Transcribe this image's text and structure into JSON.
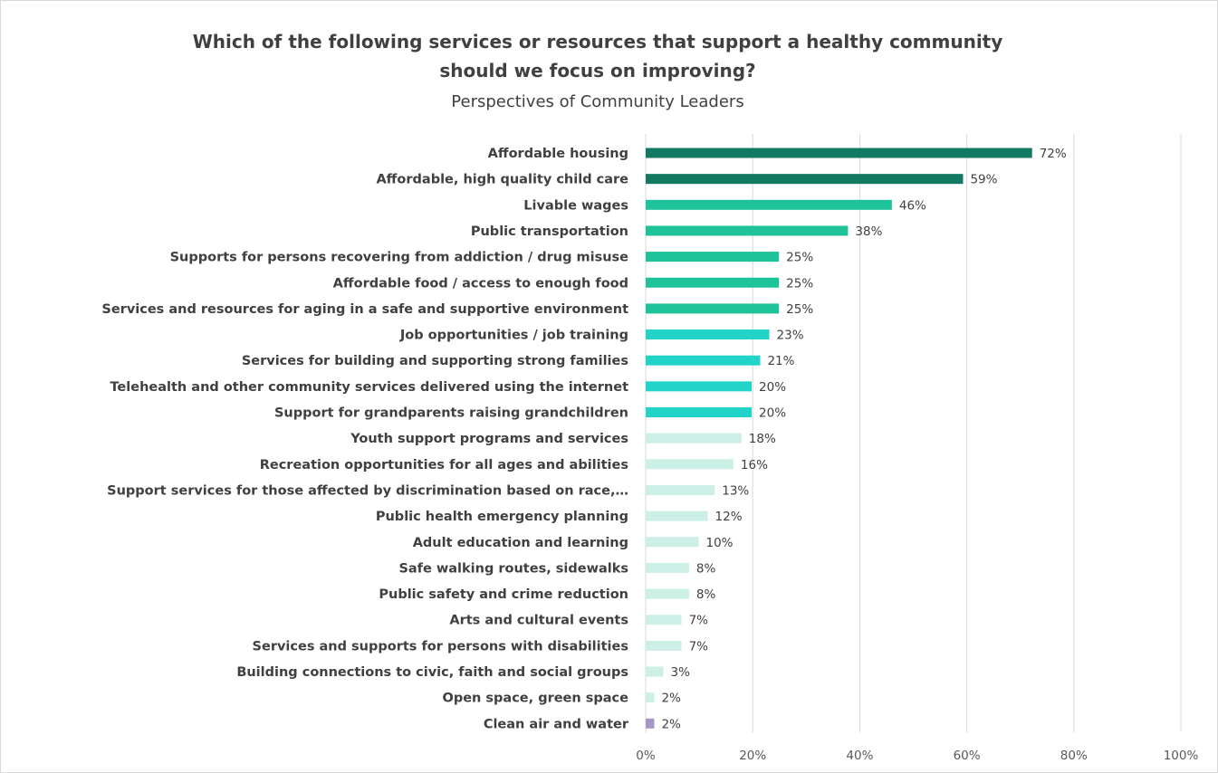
{
  "chart_data": {
    "type": "bar",
    "orientation": "horizontal",
    "title": "Which of the following services or resources that support a healthy community should we focus on improving?",
    "subtitle": "Perspectives of Community Leaders",
    "categories": [
      "Affordable housing",
      "Affordable, high quality child care",
      "Livable wages",
      "Public transportation",
      "Supports for persons recovering from addiction / drug misuse",
      "Affordable food / access to enough food",
      "Services and resources for aging in a safe and supportive environment",
      "Job opportunities / job training",
      "Services for building and supporting strong families",
      "Telehealth and other community services delivered using the internet",
      "Support for grandparents raising grandchildren",
      "Youth support programs and services",
      "Recreation opportunities for all ages and abilities",
      "Support services for those affected by discrimination based on race,…",
      "Public health emergency planning",
      "Adult education and learning",
      "Safe walking routes, sidewalks",
      "Public safety and crime reduction",
      "Arts and cultural events",
      "Services and supports for persons with disabilities",
      "Building connections to civic, faith and social groups",
      "Open space, green space",
      "Clean air and water"
    ],
    "values": [
      72.2,
      59.3,
      46,
      37.8,
      24.9,
      24.9,
      24.9,
      23.1,
      21.4,
      19.8,
      19.8,
      17.9,
      16.4,
      12.9,
      11.6,
      9.9,
      8.1,
      8.1,
      6.7,
      6.7,
      3.3,
      1.6,
      1.6
    ],
    "value_labels": [
      "72%",
      "59%",
      "46%",
      "38%",
      "25%",
      "25%",
      "25%",
      "23%",
      "21%",
      "20%",
      "20%",
      "18%",
      "16%",
      "13%",
      "12%",
      "10%",
      "8%",
      "8%",
      "7%",
      "7%",
      "3%",
      "2%",
      "2%"
    ],
    "bar_colors": [
      "#127a63",
      "#127a63",
      "#1ec39a",
      "#1ec39a",
      "#1ec39a",
      "#1ec39a",
      "#1ec39a",
      "#22d4c8",
      "#22d4c8",
      "#22d4c8",
      "#22d4c8",
      "#ccefe6",
      "#ccefe6",
      "#ccefe6",
      "#ccefe6",
      "#ccefe6",
      "#ccefe6",
      "#ccefe6",
      "#ccefe6",
      "#ccefe6",
      "#ccefe6",
      "#ccefe6",
      "#a896c9"
    ],
    "xlim": [
      0,
      100
    ],
    "xticks": [
      0,
      20,
      40,
      60,
      80,
      100
    ],
    "xtick_labels": [
      "0%",
      "20%",
      "40%",
      "60%",
      "80%",
      "100%"
    ],
    "grid": true,
    "gridline_color": "#d9d9d9",
    "legend": "none"
  }
}
